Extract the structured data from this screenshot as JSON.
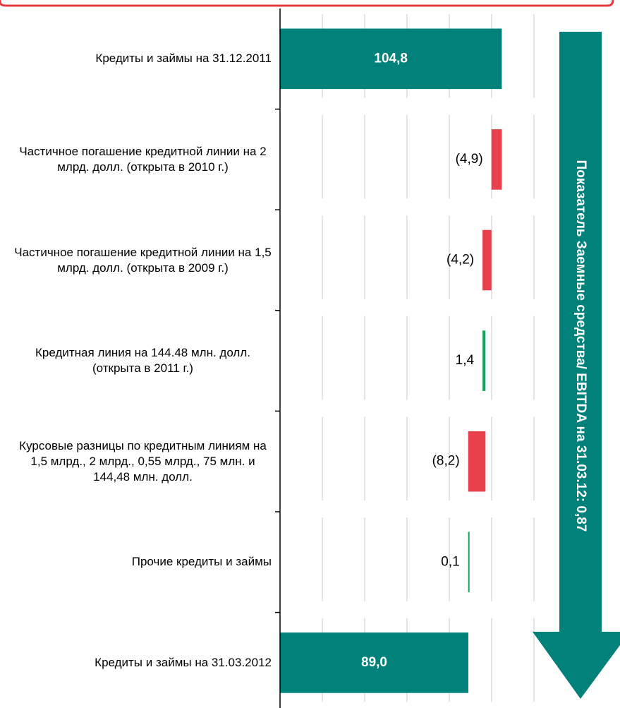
{
  "chart_data": {
    "type": "waterfall",
    "orientation": "horizontal",
    "categories": [
      "Кредиты и займы на  31.12.2011",
      "Частичное погашение кредитной линии на 2 млрд. долл. (открыта в 2010 г.)",
      "Частичное погашение кредитной линии на 1,5 млрд. долл. (открыта в 2009 г.)",
      "Кредитная линия на 144.48 млн. долл. (открыта в 2011 г.)",
      "Курсовые разницы по кредитным линиям на 1,5 млрд., 2 млрд.,  0,55 млрд., 75 млн. и 144,48 млн. долл.",
      "Прочие кредиты и займы",
      "Кредиты и займы на 31.03.2012"
    ],
    "values": [
      104.8,
      -4.9,
      -4.2,
      1.4,
      -8.2,
      0.1,
      89.0
    ],
    "value_labels": [
      "104,8",
      "(4,9)",
      "(4,2)",
      "1,4",
      "(8,2)",
      "0,1",
      "89,0"
    ],
    "total": [
      true,
      false,
      false,
      false,
      false,
      false,
      true
    ],
    "colors": {
      "total": "#00827a",
      "increase": "#12a55c",
      "decrease": "#e8404c"
    },
    "xlim": [
      0,
      120
    ],
    "xticks": [
      0,
      20,
      40,
      60,
      80,
      100,
      120
    ],
    "grid": true,
    "annotation": "Показатель Заемные средства/ EBITDA на 31.03.12:  0,87"
  }
}
